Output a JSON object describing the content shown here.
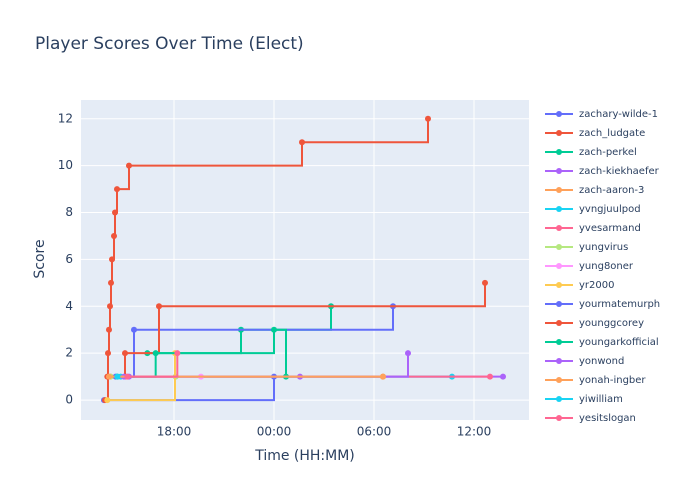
{
  "chart_data": {
    "type": "step-line",
    "title": "Player Scores Over Time (Elect)",
    "x_label": "Time (HH:MM)",
    "y_label": "Score",
    "xlim": [
      12.42,
      39.3
    ],
    "ylim": [
      -0.85,
      12.8
    ],
    "xticks": [
      {
        "value": 18,
        "label": "18:00"
      },
      {
        "value": 24,
        "label": "00:00"
      },
      {
        "value": 30,
        "label": "06:00"
      },
      {
        "value": 36,
        "label": "12:00"
      }
    ],
    "yticks": [
      0,
      2,
      4,
      6,
      8,
      10,
      12
    ],
    "grid": true,
    "legend": "right",
    "series": [
      {
        "name": "zachary-wilde-1",
        "color": "#636efa",
        "x": [
          13.8,
          24.0
        ],
        "values": [
          0,
          1
        ]
      },
      {
        "name": "zach_ludgate",
        "color": "#EF553B",
        "x": [
          13.86,
          14.04,
          14.1,
          14.16,
          14.22,
          14.28,
          14.4,
          14.46,
          14.58,
          15.3,
          25.68,
          33.24
        ],
        "values": [
          0,
          2,
          3,
          4,
          5,
          6,
          7,
          8,
          9,
          10,
          11,
          12
        ]
      },
      {
        "name": "zach-perkel",
        "color": "#00cc96",
        "x": [
          16.4,
          22.02,
          27.42
        ],
        "values": [
          2,
          3,
          4
        ]
      },
      {
        "name": "zach-kiekhaefer",
        "color": "#ab63fa",
        "x": [
          15.3,
          37.74
        ],
        "values": [
          1,
          1
        ]
      },
      {
        "name": "zach-aaron-3",
        "color": "#FFA15A",
        "x": [
          14.2,
          30.54
        ],
        "values": [
          1,
          1
        ]
      },
      {
        "name": "yvngjuulpod",
        "color": "#19d3f3",
        "x": [
          14.8,
          34.68
        ],
        "values": [
          1,
          1
        ]
      },
      {
        "name": "yvesarmand",
        "color": "#FF6692",
        "x": [
          15.1,
          36.96
        ],
        "values": [
          1,
          1
        ]
      },
      {
        "name": "yungvirus",
        "color": "#B6E880",
        "x": [
          14.2,
          18.1
        ],
        "values": [
          1,
          1
        ]
      },
      {
        "name": "yung8oner",
        "color": "#FF97FF",
        "x": [
          14.5,
          19.62
        ],
        "values": [
          1,
          1
        ]
      },
      {
        "name": "yr2000",
        "color": "#FECB52",
        "x": [
          14.0,
          18.06
        ],
        "values": [
          0,
          2
        ]
      },
      {
        "name": "yourmatemurph",
        "color": "#636efa",
        "x": [
          14.5,
          15.6,
          31.14
        ],
        "values": [
          1,
          3,
          4
        ]
      },
      {
        "name": "younggcorey",
        "color": "#EF553B",
        "x": [
          14.0,
          15.06,
          17.1,
          36.66
        ],
        "values": [
          1,
          2,
          4,
          5
        ]
      },
      {
        "name": "youngarkofficial",
        "color": "#00cc96",
        "x": [
          14.6,
          16.9,
          24.0,
          24.72
        ],
        "values": [
          1,
          2,
          3,
          1
        ]
      },
      {
        "name": "yonwond",
        "color": "#ab63fa",
        "x": [
          15.0,
          25.56,
          32.04
        ],
        "values": [
          1,
          1,
          2
        ]
      },
      {
        "name": "yonah-ingber",
        "color": "#FFA15A",
        "x": [
          14.1,
          30.54
        ],
        "values": [
          1,
          1
        ]
      },
      {
        "name": "yiwilliam",
        "color": "#19d3f3",
        "x": [
          14.6
        ],
        "values": [
          1
        ]
      },
      {
        "name": "yesitslogan",
        "color": "#FF6692",
        "x": [
          15.2,
          18.2
        ],
        "values": [
          1,
          2
        ]
      }
    ]
  }
}
